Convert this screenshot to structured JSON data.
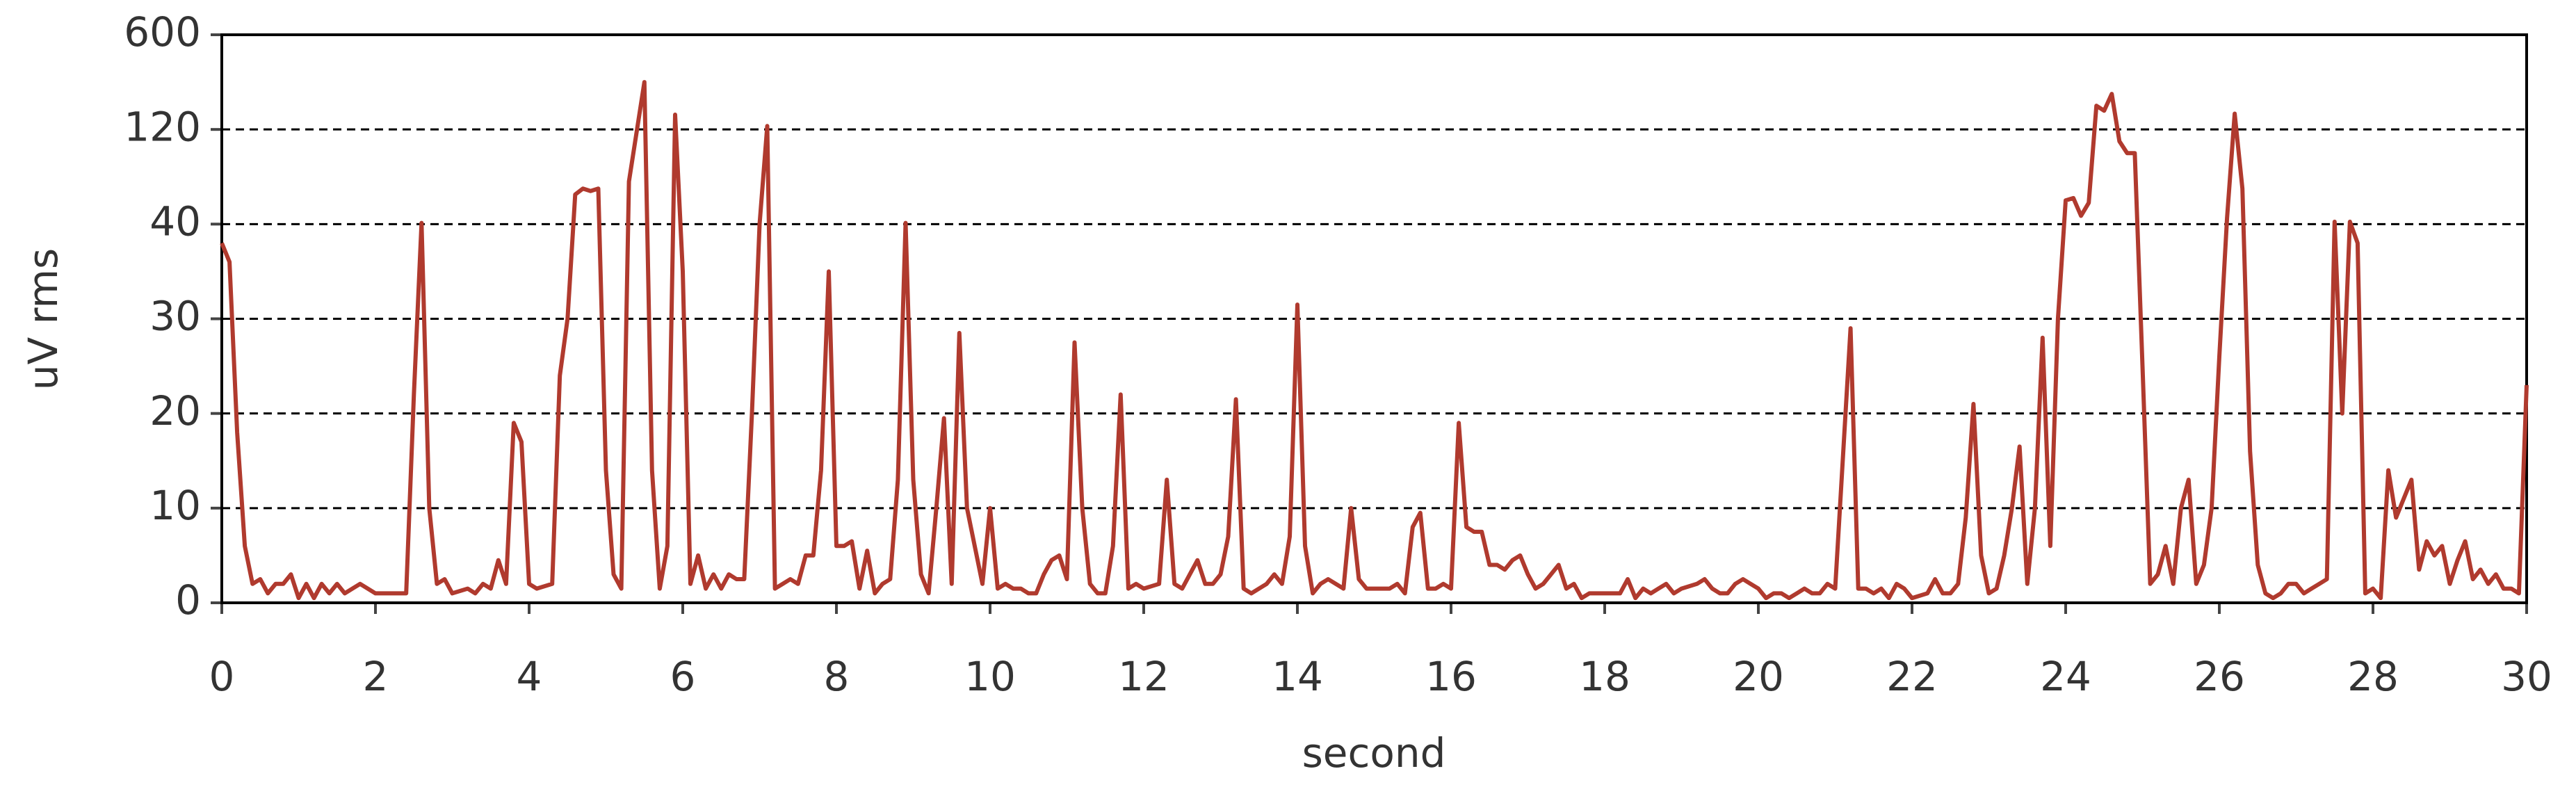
{
  "chart_data": {
    "type": "line",
    "x_label": "second",
    "y_label": "uV rms",
    "xlim": [
      0,
      30
    ],
    "xticks": [
      0,
      2,
      4,
      6,
      8,
      10,
      12,
      14,
      16,
      18,
      20,
      22,
      24,
      26,
      28,
      30
    ],
    "ylim": [
      0,
      600
    ],
    "yticks": [
      0,
      10,
      20,
      30,
      40,
      120,
      600
    ],
    "y_scale": "piecewise",
    "grid": true,
    "color": "#b03a2e",
    "x": [
      0,
      0.1,
      0.2,
      0.3,
      0.4,
      0.5,
      0.6,
      0.7,
      0.8,
      0.9,
      1.0,
      1.1,
      1.2,
      1.3,
      1.4,
      1.5,
      1.6,
      1.7,
      1.8,
      1.9,
      2.0,
      2.2,
      2.3,
      2.4,
      2.5,
      2.6,
      2.7,
      2.8,
      2.9,
      3.0,
      3.2,
      3.3,
      3.4,
      3.5,
      3.6,
      3.7,
      3.8,
      3.9,
      4.0,
      4.1,
      4.3,
      4.4,
      4.5,
      4.6,
      4.7,
      4.8,
      4.9,
      5.0,
      5.1,
      5.2,
      5.3,
      5.5,
      5.6,
      5.7,
      5.8,
      5.9,
      6.0,
      6.1,
      6.2,
      6.3,
      6.4,
      6.5,
      6.6,
      6.7,
      6.8,
      6.9,
      7.0,
      7.1,
      7.2,
      7.3,
      7.4,
      7.5,
      7.6,
      7.7,
      7.8,
      7.9,
      8.0,
      8.1,
      8.2,
      8.3,
      8.4,
      8.5,
      8.6,
      8.7,
      8.8,
      8.9,
      9.0,
      9.1,
      9.2,
      9.3,
      9.4,
      9.5,
      9.6,
      9.7,
      9.8,
      9.9,
      10.0,
      10.1,
      10.2,
      10.3,
      10.4,
      10.5,
      10.6,
      10.7,
      10.8,
      10.9,
      11.0,
      11.1,
      11.2,
      11.3,
      11.4,
      11.5,
      11.6,
      11.7,
      11.8,
      11.9,
      12.0,
      12.2,
      12.3,
      12.4,
      12.5,
      12.6,
      12.7,
      12.8,
      12.9,
      13.0,
      13.1,
      13.2,
      13.3,
      13.4,
      13.5,
      13.6,
      13.7,
      13.8,
      13.9,
      14.0,
      14.1,
      14.2,
      14.3,
      14.4,
      14.5,
      14.6,
      14.7,
      14.8,
      14.9,
      15.0,
      15.2,
      15.3,
      15.4,
      15.5,
      15.6,
      15.7,
      15.8,
      15.9,
      16.0,
      16.1,
      16.2,
      16.3,
      16.4,
      16.5,
      16.6,
      16.7,
      16.8,
      16.9,
      17.0,
      17.1,
      17.2,
      17.3,
      17.4,
      17.5,
      17.6,
      17.7,
      17.8,
      18.0,
      18.2,
      18.3,
      18.4,
      18.5,
      18.6,
      18.7,
      18.8,
      18.9,
      19.0,
      19.2,
      19.3,
      19.4,
      19.5,
      19.6,
      19.7,
      19.8,
      19.9,
      20.0,
      20.1,
      20.2,
      20.3,
      20.4,
      20.5,
      20.6,
      20.7,
      20.8,
      20.9,
      21.0,
      21.2,
      21.3,
      21.4,
      21.5,
      21.6,
      21.7,
      21.8,
      21.9,
      22.0,
      22.2,
      22.3,
      22.4,
      22.5,
      22.6,
      22.7,
      22.8,
      22.9,
      23.0,
      23.1,
      23.2,
      23.3,
      23.4,
      23.5,
      23.6,
      23.7,
      23.8,
      23.9,
      24.0,
      24.1,
      24.2,
      24.3,
      24.4,
      24.5,
      24.6,
      24.7,
      24.8,
      24.9,
      25.0,
      25.1,
      25.2,
      25.3,
      25.4,
      25.5,
      25.6,
      25.7,
      25.8,
      25.9,
      26.0,
      26.1,
      26.2,
      26.3,
      26.4,
      26.5,
      26.6,
      26.7,
      26.8,
      26.9,
      27.0,
      27.1,
      27.2,
      27.3,
      27.4,
      27.5,
      27.6,
      27.7,
      27.8,
      27.9,
      28.0,
      28.1,
      28.2,
      28.3,
      28.4,
      28.5,
      28.6,
      28.7,
      28.8,
      28.9,
      29.0,
      29.1,
      29.2,
      29.3,
      29.4,
      29.5,
      29.6,
      29.7,
      29.8,
      29.9,
      30.0
    ],
    "values": [
      38,
      36,
      18,
      6,
      2,
      2.5,
      1,
      2,
      2,
      3,
      0.5,
      2,
      0.5,
      2,
      1,
      2,
      1,
      1.5,
      2,
      1.5,
      1,
      1,
      1,
      1,
      22,
      41,
      10,
      2,
      2.5,
      1,
      1.5,
      1,
      2,
      1.5,
      4.5,
      2,
      19,
      17,
      2,
      1.5,
      2,
      24,
      30,
      65,
      70,
      68,
      70,
      14,
      3,
      1.5,
      76,
      360,
      14,
      1.5,
      6,
      195,
      35,
      2,
      5,
      1.5,
      3,
      1.5,
      3,
      2.5,
      2.5,
      20,
      40,
      137,
      1.5,
      2,
      2.5,
      2,
      5,
      5,
      14,
      35,
      6,
      6,
      6.5,
      1.5,
      5.5,
      1,
      2,
      2.5,
      13,
      41,
      13,
      3,
      1,
      10,
      19.5,
      2,
      28.5,
      10,
      6,
      2,
      10,
      1.5,
      2,
      1.5,
      1.5,
      1,
      1,
      3,
      4.5,
      5,
      2.5,
      27.5,
      10,
      2,
      1,
      1,
      6,
      22,
      1.5,
      2,
      1.5,
      2,
      13,
      2,
      1.5,
      3,
      4.5,
      2,
      2,
      3,
      7,
      21.5,
      1.5,
      1,
      1.5,
      2,
      3,
      2,
      7,
      31.5,
      6,
      1,
      2,
      2.5,
      2,
      1.5,
      10,
      2.5,
      1.5,
      1.5,
      1.5,
      2,
      1,
      8,
      9.5,
      1.5,
      1.5,
      2,
      1.5,
      19,
      8,
      7.5,
      7.5,
      4,
      4,
      3.5,
      4.5,
      5,
      3,
      1.5,
      2,
      3,
      4,
      1.5,
      2,
      0.5,
      1,
      1,
      1,
      2.5,
      0.5,
      1.5,
      1,
      1.5,
      2,
      1,
      1.5,
      2,
      2.5,
      1.5,
      1,
      1,
      2,
      2.5,
      2,
      1.5,
      0.5,
      1,
      1,
      0.5,
      1,
      1.5,
      1,
      1,
      2,
      1.5,
      29,
      1.5,
      1.5,
      1,
      1.5,
      0.5,
      2,
      1.5,
      0.5,
      1,
      2.5,
      1,
      1,
      2,
      9,
      21,
      5,
      1,
      1.5,
      5,
      10,
      16.5,
      2,
      10,
      28,
      6,
      30,
      60,
      62,
      47,
      58,
      240,
      215,
      300,
      110,
      100,
      100,
      25,
      2,
      3,
      6,
      2,
      10,
      13,
      2,
      4,
      10,
      26,
      45,
      200,
      70,
      16,
      4,
      1,
      0.5,
      1,
      2,
      2,
      1,
      1.5,
      2,
      2.5,
      42,
      20,
      42,
      38,
      1,
      1.5,
      0.5,
      14,
      9,
      11,
      13,
      3.5,
      6.5,
      5,
      6,
      2,
      4.5,
      6.5,
      2.5,
      3.5,
      2,
      3,
      1.5,
      1.5,
      1,
      23
    ]
  }
}
